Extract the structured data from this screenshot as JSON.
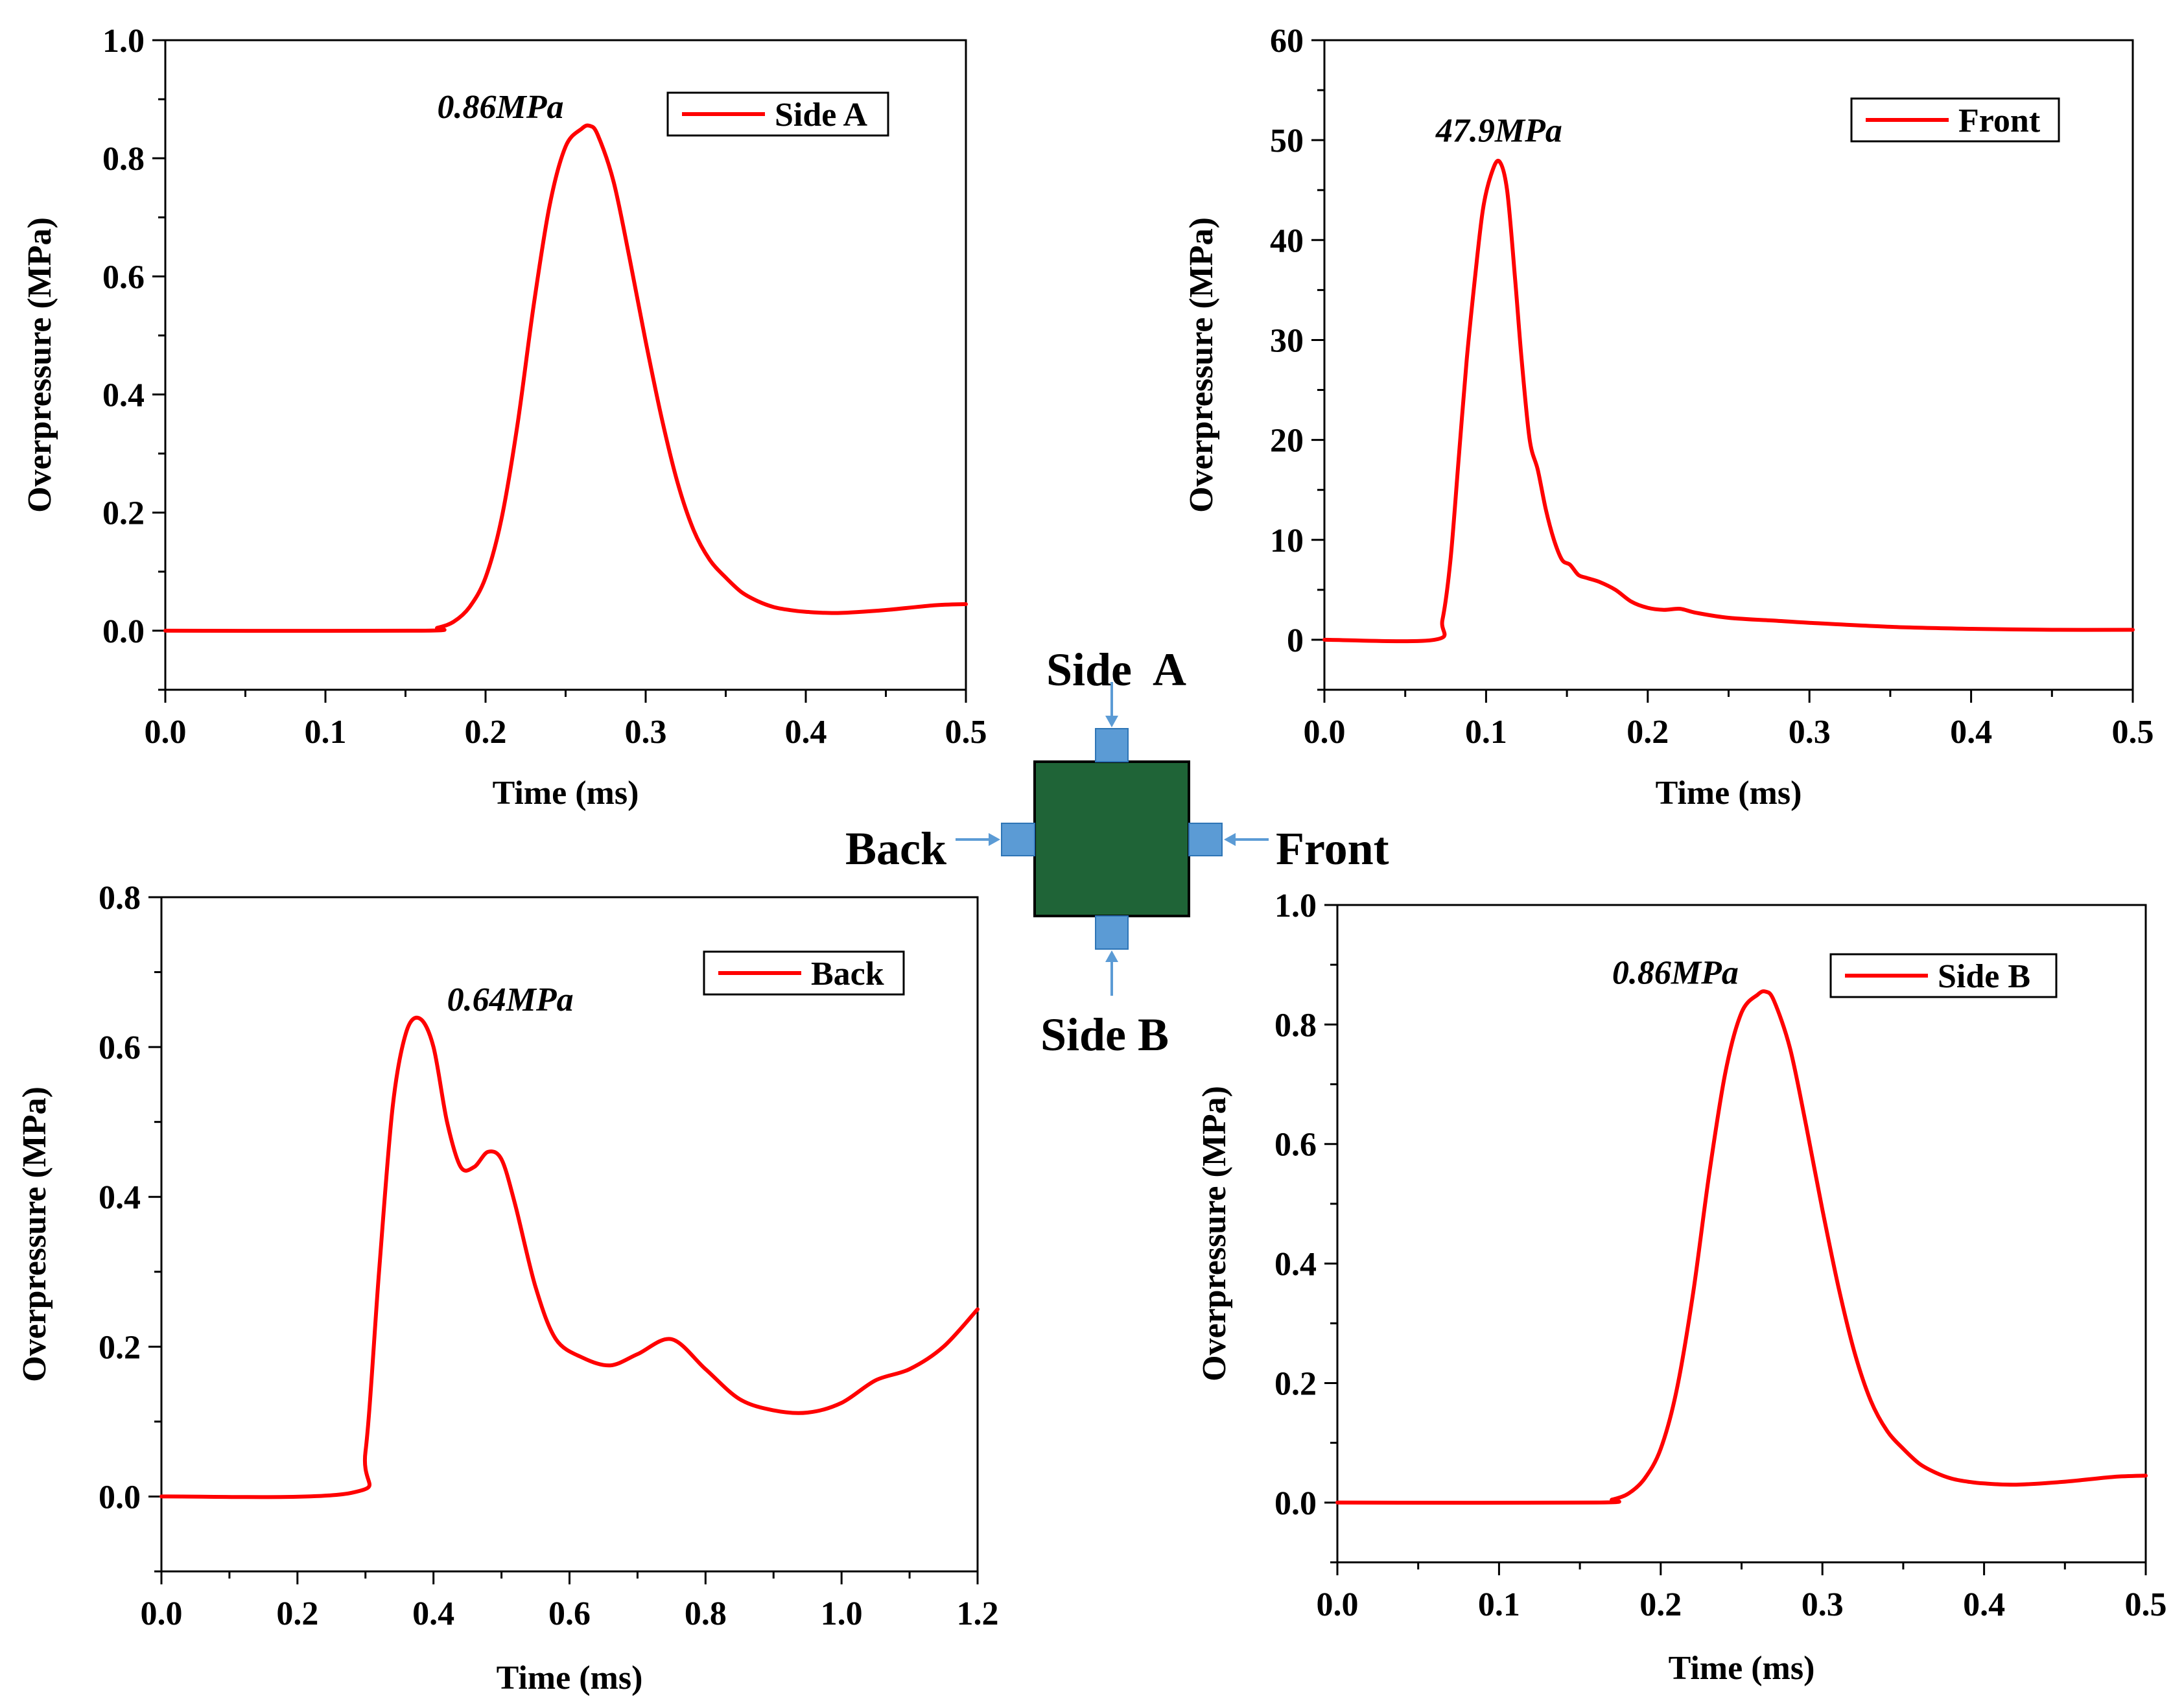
{
  "chart_data": [
    {
      "id": "side_a",
      "type": "line",
      "legend": "Side A",
      "color": "#ff0000",
      "xlabel": "Time (ms)",
      "ylabel": "Overpressure (MPa)",
      "xlim": [
        0.0,
        0.5
      ],
      "ylim": [
        -0.1,
        1.0
      ],
      "xticks": [
        "0.0",
        "0.1",
        "0.2",
        "0.3",
        "0.4",
        "0.5"
      ],
      "yticks": [
        "0.0",
        "0.2",
        "0.4",
        "0.6",
        "0.8",
        "1.0"
      ],
      "annotation": "0.86MPa",
      "x": [
        0.0,
        0.16,
        0.17,
        0.18,
        0.19,
        0.2,
        0.21,
        0.22,
        0.23,
        0.24,
        0.25,
        0.26,
        0.265,
        0.27,
        0.28,
        0.29,
        0.3,
        0.31,
        0.32,
        0.33,
        0.34,
        0.35,
        0.36,
        0.37,
        0.38,
        0.39,
        0.4,
        0.42,
        0.45,
        0.48,
        0.5
      ],
      "y": [
        0.0,
        0.0,
        0.005,
        0.015,
        0.04,
        0.09,
        0.19,
        0.35,
        0.55,
        0.72,
        0.82,
        0.85,
        0.855,
        0.84,
        0.76,
        0.63,
        0.49,
        0.36,
        0.25,
        0.17,
        0.12,
        0.09,
        0.065,
        0.05,
        0.04,
        0.035,
        0.032,
        0.03,
        0.035,
        0.043,
        0.045
      ]
    },
    {
      "id": "front",
      "type": "line",
      "legend": "Front",
      "color": "#ff0000",
      "xlabel": "Time (ms)",
      "ylabel": "Overpressure (MPa)",
      "xlim": [
        0.0,
        0.5
      ],
      "ylim": [
        -5,
        60
      ],
      "xticks": [
        "0.0",
        "0.1",
        "0.2",
        "0.3",
        "0.4",
        "0.5"
      ],
      "yticks": [
        "0",
        "10",
        "20",
        "30",
        "40",
        "50",
        "60"
      ],
      "annotation": "47.9MPa",
      "x": [
        0.0,
        0.068,
        0.073,
        0.078,
        0.083,
        0.088,
        0.093,
        0.098,
        0.103,
        0.108,
        0.113,
        0.118,
        0.122,
        0.127,
        0.132,
        0.137,
        0.142,
        0.147,
        0.152,
        0.157,
        0.162,
        0.17,
        0.18,
        0.19,
        0.2,
        0.21,
        0.22,
        0.23,
        0.25,
        0.28,
        0.3,
        0.35,
        0.4,
        0.45,
        0.5
      ],
      "y": [
        0.0,
        0.0,
        2,
        8,
        18,
        28,
        36,
        43,
        46.5,
        47.9,
        45,
        36,
        28,
        20,
        17,
        13,
        10,
        8,
        7.5,
        6.5,
        6.2,
        5.8,
        5,
        3.8,
        3.2,
        3.0,
        3.1,
        2.7,
        2.2,
        1.9,
        1.7,
        1.3,
        1.1,
        1.0,
        1.0
      ]
    },
    {
      "id": "back",
      "type": "line",
      "legend": "Back",
      "color": "#ff0000",
      "xlabel": "Time (ms)",
      "ylabel": "Overpressure (MPa)",
      "xlim": [
        0.0,
        1.2
      ],
      "ylim": [
        -0.1,
        0.8
      ],
      "xticks": [
        "0.0",
        "0.2",
        "0.4",
        "0.6",
        "0.8",
        "1.0",
        "1.2"
      ],
      "yticks": [
        "0.0",
        "0.2",
        "0.4",
        "0.6",
        "0.8"
      ],
      "annotation": "0.64MPa",
      "x": [
        0.0,
        0.28,
        0.3,
        0.32,
        0.34,
        0.36,
        0.38,
        0.4,
        0.42,
        0.44,
        0.46,
        0.48,
        0.5,
        0.52,
        0.55,
        0.58,
        0.62,
        0.66,
        0.7,
        0.75,
        0.8,
        0.85,
        0.9,
        0.95,
        1.0,
        1.05,
        1.1,
        1.15,
        1.2
      ],
      "y": [
        0.0,
        0.005,
        0.06,
        0.3,
        0.52,
        0.62,
        0.638,
        0.6,
        0.5,
        0.44,
        0.44,
        0.46,
        0.45,
        0.39,
        0.28,
        0.21,
        0.185,
        0.175,
        0.19,
        0.21,
        0.17,
        0.13,
        0.115,
        0.112,
        0.125,
        0.155,
        0.17,
        0.2,
        0.25
      ]
    },
    {
      "id": "side_b",
      "type": "line",
      "legend": "Side B",
      "color": "#ff0000",
      "xlabel": "Time (ms)",
      "ylabel": "Overpressure (MPa)",
      "xlim": [
        0.0,
        0.5
      ],
      "ylim": [
        -0.1,
        1.0
      ],
      "xticks": [
        "0.0",
        "0.1",
        "0.2",
        "0.3",
        "0.4",
        "0.5"
      ],
      "yticks": [
        "0.0",
        "0.2",
        "0.4",
        "0.6",
        "0.8",
        "1.0"
      ],
      "annotation": "0.86MPa",
      "x": [
        0.0,
        0.16,
        0.17,
        0.18,
        0.19,
        0.2,
        0.21,
        0.22,
        0.23,
        0.24,
        0.25,
        0.26,
        0.265,
        0.27,
        0.28,
        0.29,
        0.3,
        0.31,
        0.32,
        0.33,
        0.34,
        0.35,
        0.36,
        0.37,
        0.38,
        0.39,
        0.4,
        0.42,
        0.45,
        0.48,
        0.5
      ],
      "y": [
        0.0,
        0.0,
        0.005,
        0.015,
        0.04,
        0.09,
        0.19,
        0.35,
        0.55,
        0.72,
        0.82,
        0.85,
        0.855,
        0.84,
        0.76,
        0.63,
        0.49,
        0.36,
        0.25,
        0.17,
        0.12,
        0.09,
        0.065,
        0.05,
        0.04,
        0.035,
        0.032,
        0.03,
        0.035,
        0.043,
        0.045
      ]
    }
  ],
  "diagram": {
    "labels": {
      "side_a": "Side  A",
      "side_b": "Side B",
      "back": "Back",
      "front": "Front"
    },
    "block_color": "#1f6437",
    "gauge_color": "#5b9bd5"
  }
}
